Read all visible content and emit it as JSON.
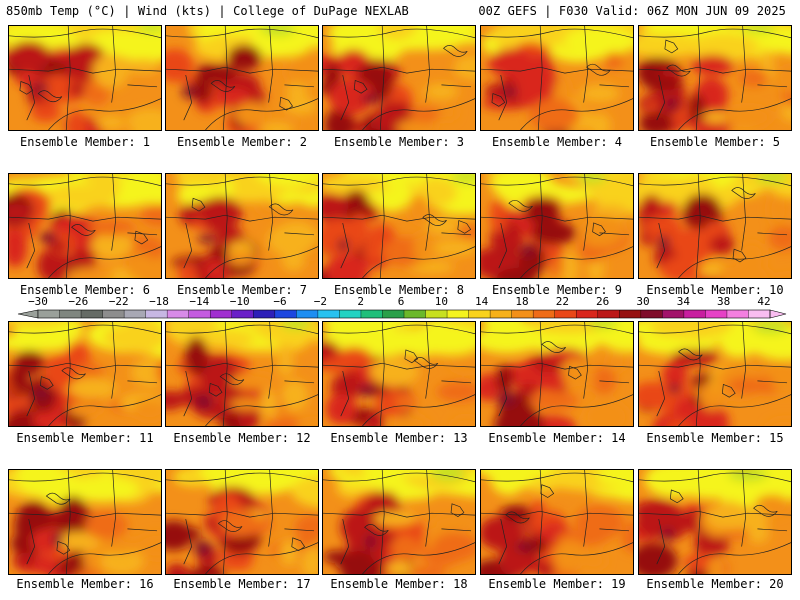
{
  "header": {
    "left": "850mb Temp (°C) | Wind (kts) | College of DuPage NEXLAB",
    "right": "00Z GEFS | F030 Valid: 06Z MON JUN 09 2025"
  },
  "panels": [
    {
      "label": "Ensemble Member: 1"
    },
    {
      "label": "Ensemble Member: 2"
    },
    {
      "label": "Ensemble Member: 3"
    },
    {
      "label": "Ensemble Member: 4"
    },
    {
      "label": "Ensemble Member: 5"
    },
    {
      "label": "Ensemble Member: 6"
    },
    {
      "label": "Ensemble Member: 7"
    },
    {
      "label": "Ensemble Member: 8"
    },
    {
      "label": "Ensemble Member: 9"
    },
    {
      "label": "Ensemble Member: 10"
    },
    {
      "label": "Ensemble Member: 11"
    },
    {
      "label": "Ensemble Member: 12"
    },
    {
      "label": "Ensemble Member: 13"
    },
    {
      "label": "Ensemble Member: 14"
    },
    {
      "label": "Ensemble Member: 15"
    },
    {
      "label": "Ensemble Member: 16"
    },
    {
      "label": "Ensemble Member: 17"
    },
    {
      "label": "Ensemble Member: 18"
    },
    {
      "label": "Ensemble Member: 19"
    },
    {
      "label": "Ensemble Member: 20"
    }
  ],
  "colorbar": {
    "labels": [
      "−30",
      "−26",
      "−22",
      "−18",
      "−14",
      "−10",
      "−6",
      "−2",
      "2",
      "6",
      "10",
      "14",
      "18",
      "22",
      "26",
      "30",
      "34",
      "38",
      "42"
    ],
    "colors": [
      "#9aa09a",
      "#7f867f",
      "#656b65",
      "#8d8d8d",
      "#a8a8b4",
      "#c7b7e3",
      "#d88be8",
      "#c45be0",
      "#a02fd0",
      "#6a1fc8",
      "#2d1fb8",
      "#1c46e0",
      "#1d8ef2",
      "#28c2f0",
      "#22d2c2",
      "#1fbf7a",
      "#2aa04a",
      "#6bb82a",
      "#c8e020",
      "#f5f41e",
      "#f9d21c",
      "#f7b11a",
      "#f39019",
      "#ef6c17",
      "#e94717",
      "#d9261c",
      "#bb1717",
      "#961111",
      "#7f0d2a",
      "#a2136a",
      "#c81e9f",
      "#e641c6",
      "#f47fe0",
      "#f9bdf0"
    ]
  }
}
